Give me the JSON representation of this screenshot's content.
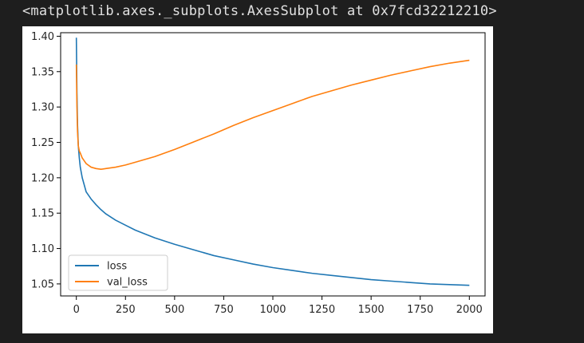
{
  "output": {
    "repr_text": "<matplotlib.axes._subplots.AxesSubplot at 0x7fcd32212210>"
  },
  "chart_data": {
    "type": "line",
    "title": "",
    "xlabel": "",
    "ylabel": "",
    "xlim": [
      -80,
      2080
    ],
    "ylim": [
      1.033,
      1.405
    ],
    "xticks": [
      0,
      250,
      500,
      750,
      1000,
      1250,
      1500,
      1750,
      2000
    ],
    "yticks": [
      1.05,
      1.1,
      1.15,
      1.2,
      1.25,
      1.3,
      1.35,
      1.4
    ],
    "grid": false,
    "legend_position": "lower-left",
    "series": [
      {
        "name": "loss",
        "color": "#1f77b4",
        "x": [
          0,
          3,
          6,
          10,
          15,
          20,
          30,
          40,
          50,
          75,
          100,
          125,
          150,
          200,
          250,
          300,
          400,
          500,
          600,
          700,
          800,
          900,
          1000,
          1100,
          1200,
          1300,
          1400,
          1500,
          1600,
          1700,
          1800,
          1900,
          2000
        ],
        "y": [
          1.398,
          1.32,
          1.275,
          1.245,
          1.228,
          1.215,
          1.2,
          1.19,
          1.18,
          1.17,
          1.162,
          1.155,
          1.149,
          1.14,
          1.133,
          1.126,
          1.115,
          1.106,
          1.098,
          1.09,
          1.084,
          1.078,
          1.073,
          1.069,
          1.065,
          1.062,
          1.059,
          1.056,
          1.054,
          1.052,
          1.05,
          1.049,
          1.048
        ]
      },
      {
        "name": "val_loss",
        "color": "#ff7f0e",
        "x": [
          0,
          3,
          6,
          10,
          15,
          20,
          30,
          40,
          50,
          75,
          100,
          125,
          150,
          200,
          250,
          300,
          400,
          500,
          600,
          700,
          800,
          900,
          1000,
          1100,
          1200,
          1300,
          1400,
          1500,
          1600,
          1700,
          1800,
          1900,
          2000
        ],
        "y": [
          1.36,
          1.3,
          1.265,
          1.245,
          1.238,
          1.235,
          1.228,
          1.224,
          1.22,
          1.215,
          1.213,
          1.212,
          1.213,
          1.215,
          1.218,
          1.222,
          1.23,
          1.24,
          1.251,
          1.262,
          1.274,
          1.285,
          1.295,
          1.305,
          1.315,
          1.323,
          1.331,
          1.338,
          1.345,
          1.351,
          1.357,
          1.362,
          1.366
        ]
      }
    ]
  }
}
